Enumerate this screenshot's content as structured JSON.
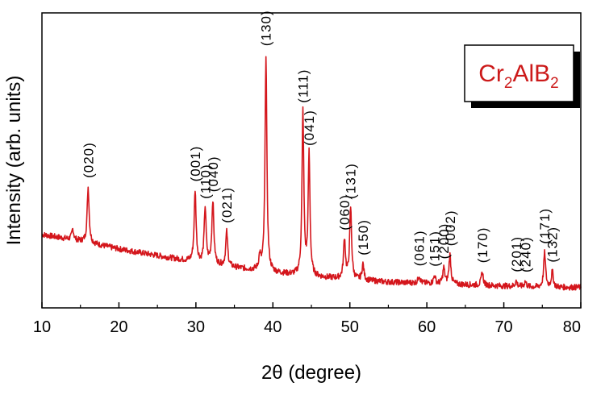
{
  "chart_data": {
    "type": "line",
    "title": "",
    "xlabel": "2θ (degree)",
    "ylabel": "Intensity (arb. units)",
    "xlim": [
      10,
      80
    ],
    "ylim": [
      0,
      100
    ],
    "x_ticks": [
      10,
      20,
      30,
      40,
      50,
      60,
      70,
      80
    ],
    "x_tick_labels": [
      "10",
      "20",
      "30",
      "40",
      "50",
      "60",
      "70",
      "80"
    ],
    "grid": false,
    "line_color": "#d4161c",
    "legend": {
      "placement": "top-right",
      "base": "Cr",
      "sub1": "2",
      "mid": "AlB",
      "sub2": "2",
      "color": "#cc1a1a"
    },
    "baseline": [
      [
        10,
        23.5
      ],
      [
        15,
        21
      ],
      [
        20,
        18
      ],
      [
        25,
        15.5
      ],
      [
        30,
        13
      ],
      [
        35,
        11
      ],
      [
        40,
        9
      ],
      [
        45,
        7.5
      ],
      [
        50,
        6.5
      ],
      [
        55,
        5.5
      ],
      [
        60,
        5
      ],
      [
        65,
        4.5
      ],
      [
        70,
        4
      ],
      [
        75,
        3.5
      ],
      [
        80,
        3.5
      ]
    ],
    "peaks": [
      {
        "x": 14.0,
        "y": 4,
        "w": 0.15
      },
      {
        "x": 16.0,
        "y": 21,
        "w": 0.15,
        "label": "(020)"
      },
      {
        "x": 29.9,
        "y": 27,
        "w": 0.15,
        "label": "(001)"
      },
      {
        "x": 31.2,
        "y": 21,
        "w": 0.15,
        "label": "(110)"
      },
      {
        "x": 32.2,
        "y": 24,
        "w": 0.15,
        "label": "(040)"
      },
      {
        "x": 34.0,
        "y": 13,
        "w": 0.15,
        "label": "(021)"
      },
      {
        "x": 38.3,
        "y": 5,
        "w": 0.15
      },
      {
        "x": 39.1,
        "y": 82,
        "w": 0.14,
        "label": "(130)"
      },
      {
        "x": 43.9,
        "y": 62,
        "w": 0.14,
        "label": "(111)"
      },
      {
        "x": 44.7,
        "y": 46,
        "w": 0.14,
        "label": "(041)"
      },
      {
        "x": 49.3,
        "y": 15,
        "w": 0.15,
        "label": "(060)"
      },
      {
        "x": 50.1,
        "y": 27,
        "w": 0.15,
        "label": "(131)"
      },
      {
        "x": 51.7,
        "y": 6,
        "w": 0.15,
        "label": "(150)"
      },
      {
        "x": 59.0,
        "y": 3,
        "w": 0.15,
        "label": "(061)"
      },
      {
        "x": 61.0,
        "y": 3,
        "w": 0.15,
        "label": "(151)"
      },
      {
        "x": 62.2,
        "y": 6,
        "w": 0.15,
        "label": "(200)"
      },
      {
        "x": 63.0,
        "y": 11,
        "w": 0.15,
        "label": "(002)"
      },
      {
        "x": 67.2,
        "y": 5,
        "w": 0.15,
        "label": "(170)"
      },
      {
        "x": 71.6,
        "y": 2,
        "w": 0.15,
        "label": "(201)"
      },
      {
        "x": 72.8,
        "y": 2,
        "w": 0.15,
        "label": "(240)"
      },
      {
        "x": 75.3,
        "y": 13,
        "w": 0.15,
        "label": "(171)"
      },
      {
        "x": 76.3,
        "y": 6,
        "w": 0.15,
        "label": "(132)"
      }
    ]
  }
}
